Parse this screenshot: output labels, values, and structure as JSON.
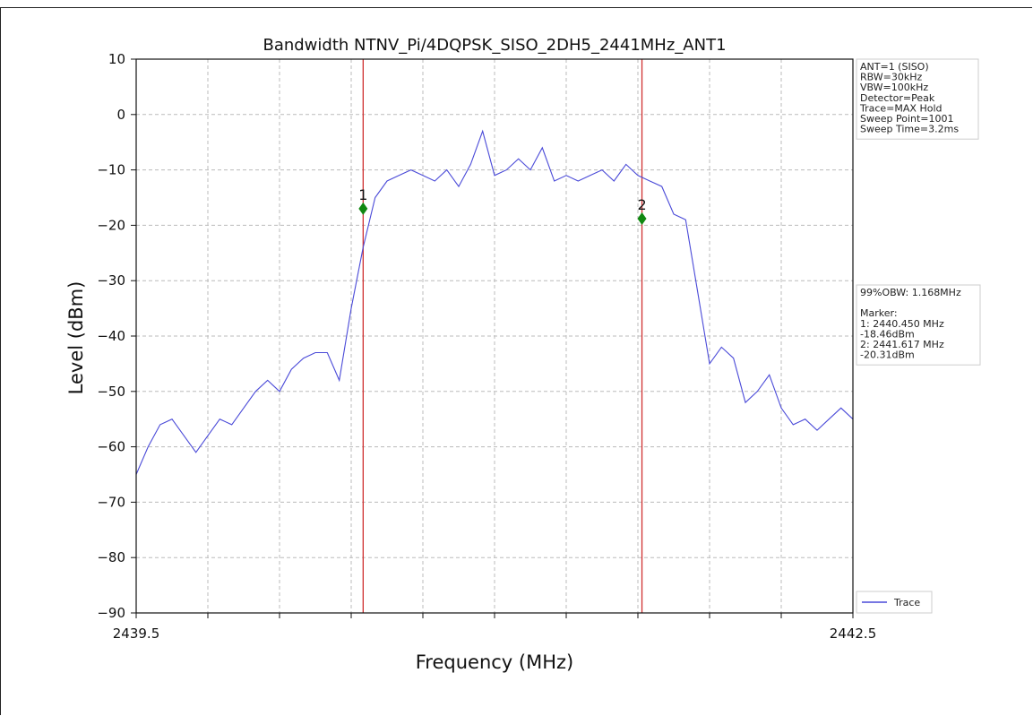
{
  "chart_data": {
    "type": "line",
    "title": "Bandwidth NTNV_Pi/4DQPSK_SISO_2DH5_2441MHz_ANT1",
    "xlabel": "Frequency (MHz)",
    "ylabel": "Level (dBm)",
    "xlim": [
      2439.5,
      2442.5
    ],
    "ylim": [
      -90,
      10
    ],
    "x_tick_labels": [
      "2439.5",
      "2442.5"
    ],
    "y_ticks": [
      10,
      0,
      -10,
      -20,
      -30,
      -40,
      -50,
      -60,
      -70,
      -80,
      -90
    ],
    "y_tick_labels": [
      "10",
      "0",
      "−10",
      "−20",
      "−30",
      "−40",
      "−50",
      "−60",
      "−70",
      "−80",
      "−90"
    ],
    "grid": true,
    "legend_position": "bottom-right",
    "series": [
      {
        "name": "Trace",
        "color": "#4a4ad8",
        "x": [
          2439.5,
          2439.55,
          2439.6,
          2439.65,
          2439.7,
          2439.75,
          2439.8,
          2439.85,
          2439.9,
          2439.95,
          2440.0,
          2440.05,
          2440.1,
          2440.15,
          2440.2,
          2440.25,
          2440.3,
          2440.35,
          2440.4,
          2440.45,
          2440.5,
          2440.55,
          2440.6,
          2440.65,
          2440.7,
          2440.75,
          2440.8,
          2440.85,
          2440.9,
          2440.95,
          2441.0,
          2441.05,
          2441.1,
          2441.15,
          2441.2,
          2441.25,
          2441.3,
          2441.35,
          2441.4,
          2441.45,
          2441.5,
          2441.55,
          2441.6,
          2441.65,
          2441.7,
          2441.75,
          2441.8,
          2441.85,
          2441.9,
          2441.95,
          2442.0,
          2442.05,
          2442.1,
          2442.15,
          2442.2,
          2442.25,
          2442.3,
          2442.35,
          2442.4,
          2442.45,
          2442.5
        ],
        "y": [
          -65,
          -60,
          -56,
          -55,
          -58,
          -61,
          -58,
          -55,
          -56,
          -53,
          -50,
          -48,
          -50,
          -46,
          -44,
          -43,
          -43,
          -48,
          -35,
          -24,
          -15,
          -12,
          -11,
          -10,
          -11,
          -12,
          -10,
          -13,
          -9,
          -3,
          -11,
          -10,
          -8,
          -10,
          -6,
          -12,
          -11,
          -12,
          -11,
          -10,
          -12,
          -9,
          -11,
          -12,
          -13,
          -18,
          -19,
          -32,
          -45,
          -42,
          -44,
          -52,
          -50,
          -47,
          -53,
          -56,
          -55,
          -57,
          -55,
          -53,
          -55
        ]
      }
    ],
    "markers": [
      {
        "label": "1",
        "x": 2440.45,
        "y": -17.0,
        "color": "#118811"
      },
      {
        "label": "2",
        "x": 2441.617,
        "y": -18.8,
        "color": "#118811"
      }
    ],
    "vlines": [
      {
        "x": 2440.45,
        "color": "#d03030"
      },
      {
        "x": 2441.617,
        "color": "#d03030"
      }
    ],
    "settings_box": [
      "ANT=1 (SISO)",
      "RBW=30kHz",
      "VBW=100kHz",
      "Detector=Peak",
      "Trace=MAX Hold",
      "Sweep Point=1001",
      "Sweep Time=3.2ms"
    ],
    "result_box": [
      "99%OBW: 1.168MHz",
      "",
      "Marker:",
      "1: 2440.450 MHz",
      "    -18.46dBm",
      "2: 2441.617 MHz",
      "    -20.31dBm"
    ],
    "legend": {
      "label": "Trace"
    }
  }
}
